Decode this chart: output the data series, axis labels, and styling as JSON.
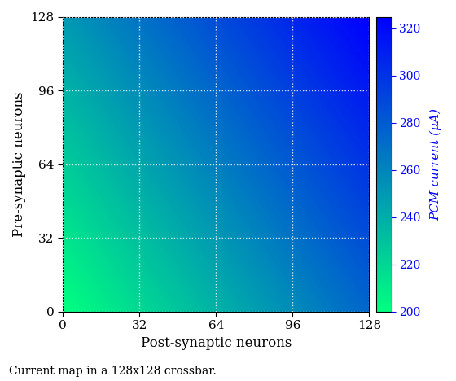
{
  "title": "",
  "xlabel": "Post-synaptic neurons",
  "ylabel": "Pre-synaptic neurons",
  "colorbar_label": "PCM current (μA)",
  "size": 128,
  "vmin": 200,
  "vmax": 325,
  "colorbar_ticks": [
    200,
    220,
    240,
    260,
    280,
    300,
    320
  ],
  "xticks": [
    0,
    32,
    64,
    96,
    128
  ],
  "yticks": [
    0,
    32,
    64,
    96,
    128
  ],
  "grid_color": "white",
  "grid_linewidth": 1.0,
  "caption": "Current map in a 128x128 crossbar.",
  "figsize": [
    5.6,
    4.68
  ],
  "dpi": 100,
  "cmap": "winter_r",
  "gradient_x_weight": 0.6,
  "gradient_y_weight": 0.4
}
